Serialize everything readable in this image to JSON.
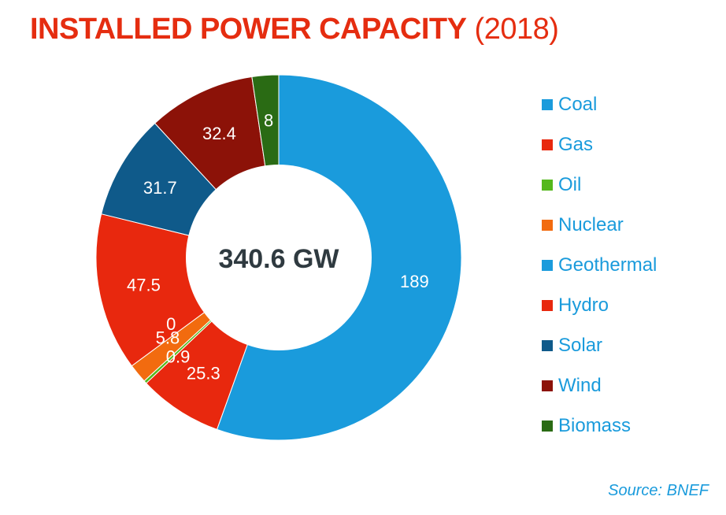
{
  "title": {
    "main": "INSTALLED POWER CAPACITY",
    "year": "(2018)"
  },
  "source": "Source: BNEF",
  "chart_data": {
    "type": "pie",
    "style": "donut",
    "center_label": "340.6 GW",
    "categories": [
      "Coal",
      "Gas",
      "Oil",
      "Nuclear",
      "Geothermal",
      "Hydro",
      "Solar",
      "Wind",
      "Biomass"
    ],
    "values": [
      189,
      25.3,
      0.9,
      5.8,
      0,
      47.5,
      31.7,
      32.4,
      8
    ],
    "data_labels": [
      "189",
      "25.3",
      "0.9",
      "5.8",
      "0",
      "47.5",
      "31.7",
      "32.4",
      "8"
    ],
    "colors": [
      "#1a9bdc",
      "#e8280e",
      "#54b81c",
      "#f26b0f",
      "#1a9bdc",
      "#e8280e",
      "#0f5a8a",
      "#8c1208",
      "#2a6b14"
    ],
    "legend_position": "right"
  }
}
